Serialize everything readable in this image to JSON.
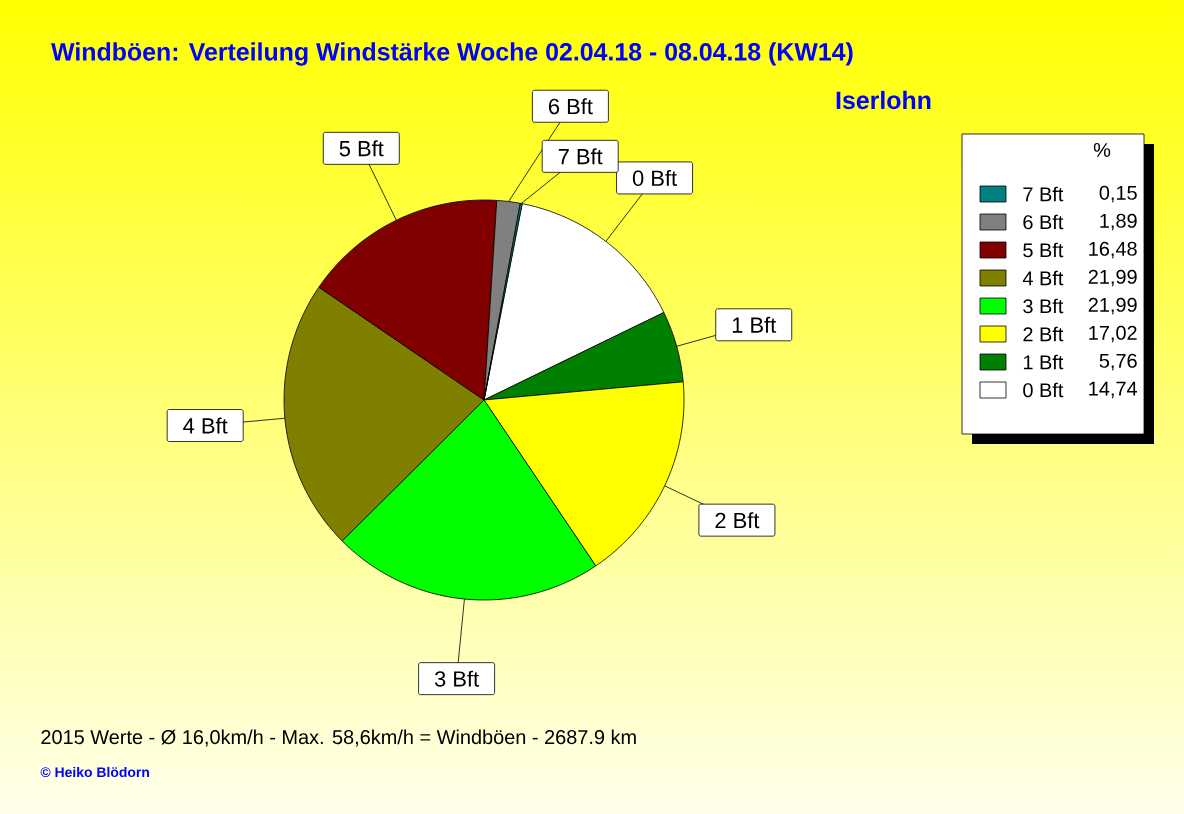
{
  "chart_data": {
    "type": "pie",
    "title": "Windböen: Verteilung Windstärke  Woche 02.04.18 - 08.04.18 (KW14)",
    "subtitle": "Iserlohn",
    "categories": [
      "0 Bft",
      "1 Bft",
      "2 Bft",
      "3 Bft",
      "4 Bft",
      "5 Bft",
      "6 Bft",
      "7 Bft"
    ],
    "values": [
      14.74,
      5.76,
      17.02,
      21.99,
      21.99,
      16.48,
      1.89,
      0.15
    ],
    "value_labels": [
      "14,74",
      "5,76",
      "17,02",
      "21,99",
      "21,99",
      "16,48",
      "1,89",
      "0,15"
    ],
    "colors": [
      "#ffffff",
      "#008000",
      "#ffff00",
      "#00ff00",
      "#808000",
      "#800000",
      "#808080",
      "#008080"
    ],
    "legend": "top right",
    "legend_title": "%",
    "annotations": [
      "2015 Werte   -   Ø 16,0km/h  -  Max. 58,6km/h = Windböen   -   2687.9 km",
      "© Heiko Blödorn"
    ]
  }
}
